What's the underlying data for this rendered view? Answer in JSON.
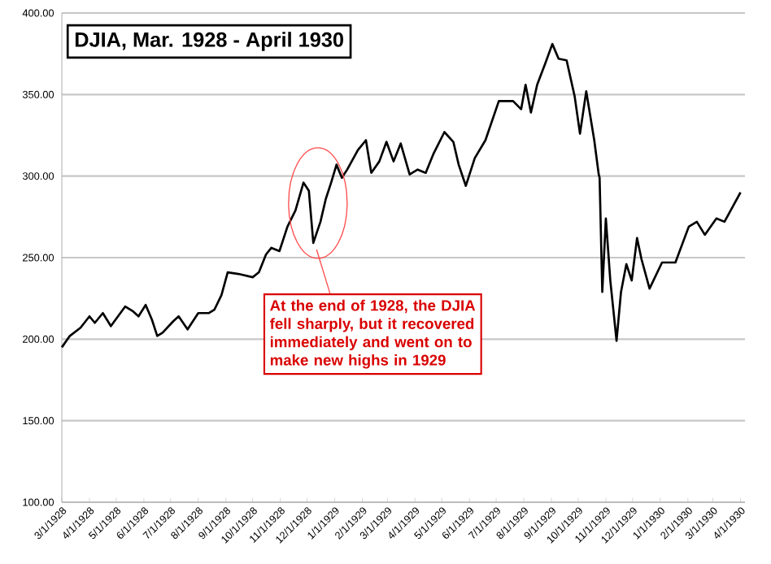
{
  "chart_data": {
    "type": "line",
    "title": "DJIA, Mar. 1928 - April 1930",
    "color": "#000000",
    "grid": "y",
    "x": [
      "1928-03-01",
      "1928-03-10",
      "1928-03-22",
      "1928-04-01",
      "1928-04-07",
      "1928-04-16",
      "1928-04-25",
      "1928-05-11",
      "1928-05-20",
      "1928-05-26",
      "1928-06-03",
      "1928-06-10",
      "1928-06-16",
      "1928-06-22",
      "1928-07-04",
      "1928-07-10",
      "1928-07-20",
      "1928-08-01",
      "1928-08-13",
      "1928-08-19",
      "1928-08-27",
      "1928-09-03",
      "1928-09-15",
      "1928-10-01",
      "1928-10-08",
      "1928-10-16",
      "1928-10-22",
      "1928-10-31",
      "1928-11-09",
      "1928-11-18",
      "1928-11-27",
      "1928-12-03",
      "1928-12-08",
      "1928-12-16",
      "1928-12-22",
      "1928-12-28",
      "1929-01-03",
      "1929-01-09",
      "1929-01-15",
      "1929-01-27",
      "1929-02-05",
      "1929-02-11",
      "1929-02-20",
      "1929-02-28",
      "1929-03-08",
      "1929-03-16",
      "1929-03-26",
      "1929-04-04",
      "1929-04-13",
      "1929-04-22",
      "1929-05-04",
      "1929-05-14",
      "1929-05-20",
      "1929-05-28",
      "1929-06-07",
      "1929-06-19",
      "1929-07-04",
      "1929-07-20",
      "1929-07-29",
      "1929-08-03",
      "1929-08-09",
      "1929-08-16",
      "1929-08-25",
      "1929-09-02",
      "1929-09-09",
      "1929-09-18",
      "1929-09-27",
      "1929-10-03",
      "1929-10-10",
      "1929-10-19",
      "1929-10-24",
      "1929-10-25",
      "1929-10-28",
      "1929-11-01",
      "1929-11-06",
      "1929-11-13",
      "1929-11-18",
      "1929-11-24",
      "1929-11-30",
      "1929-12-06",
      "1929-12-11",
      "1929-12-20",
      "1930-01-03",
      "1930-01-18",
      "1930-02-02",
      "1930-02-11",
      "1930-02-20",
      "1930-03-05",
      "1930-03-14",
      "1930-04-01"
    ],
    "values": [
      195,
      202,
      207,
      214,
      210,
      216,
      208,
      220,
      217,
      214,
      221,
      212,
      202,
      204,
      211,
      214,
      206,
      216,
      216,
      218,
      227,
      241,
      240,
      238,
      241,
      252,
      256,
      254,
      269,
      279,
      296,
      291,
      259,
      272,
      286,
      296,
      307,
      299,
      304,
      316,
      322,
      302,
      309,
      321,
      309,
      320,
      301,
      304,
      302,
      314,
      327,
      321,
      307,
      294,
      311,
      322,
      346,
      346,
      341,
      356,
      339,
      356,
      369,
      381,
      372,
      371,
      349,
      326,
      352,
      322,
      301,
      299,
      229,
      274,
      236,
      199,
      229,
      246,
      236,
      262,
      249,
      231,
      247,
      247,
      269,
      272,
      264,
      274,
      272,
      290
    ],
    "xlim": [
      "1928-03-01",
      "1930-04-06"
    ],
    "xticks": [
      {
        "value": "1928-03-01",
        "label": "3/1/1928"
      },
      {
        "value": "1928-04-01",
        "label": "4/1/1928"
      },
      {
        "value": "1928-05-01",
        "label": "5/1/1928"
      },
      {
        "value": "1928-06-01",
        "label": "6/1/1928"
      },
      {
        "value": "1928-07-01",
        "label": "7/1/1928"
      },
      {
        "value": "1928-08-01",
        "label": "8/1/1928"
      },
      {
        "value": "1928-09-01",
        "label": "9/1/1928"
      },
      {
        "value": "1928-10-01",
        "label": "10/1/1928"
      },
      {
        "value": "1928-11-01",
        "label": "11/1/1928"
      },
      {
        "value": "1928-12-01",
        "label": "12/1/1928"
      },
      {
        "value": "1929-01-01",
        "label": "1/1/1929"
      },
      {
        "value": "1929-02-01",
        "label": "2/1/1929"
      },
      {
        "value": "1929-03-01",
        "label": "3/1/1929"
      },
      {
        "value": "1929-04-01",
        "label": "4/1/1929"
      },
      {
        "value": "1929-05-01",
        "label": "5/1/1929"
      },
      {
        "value": "1929-06-01",
        "label": "6/1/1929"
      },
      {
        "value": "1929-07-01",
        "label": "7/1/1929"
      },
      {
        "value": "1929-08-01",
        "label": "8/1/1929"
      },
      {
        "value": "1929-09-01",
        "label": "9/1/1929"
      },
      {
        "value": "1929-10-01",
        "label": "10/1/1929"
      },
      {
        "value": "1929-11-01",
        "label": "11/1/1929"
      },
      {
        "value": "1929-12-01",
        "label": "12/1/1929"
      },
      {
        "value": "1930-01-01",
        "label": "1/1/1930"
      },
      {
        "value": "1930-02-01",
        "label": "2/1/1930"
      },
      {
        "value": "1930-03-01",
        "label": "3/1/1930"
      },
      {
        "value": "1930-04-01",
        "label": "4/1/1930"
      }
    ],
    "ylim": [
      100,
      400
    ],
    "yticks": [
      {
        "value": 100,
        "label": "100.00"
      },
      {
        "value": 150,
        "label": "150.00"
      },
      {
        "value": 200,
        "label": "200.00"
      },
      {
        "value": 250,
        "label": "250.00"
      },
      {
        "value": 300,
        "label": "300.00"
      },
      {
        "value": 350,
        "label": "350.00"
      },
      {
        "value": 400,
        "label": "400.00"
      }
    ],
    "annotations": [
      {
        "text": "At the end of 1928, the DJIA fell sharply, but it recovered immediately and went on to make new highs in 1929",
        "x": "1928-12-08",
        "y": 259
      }
    ]
  }
}
